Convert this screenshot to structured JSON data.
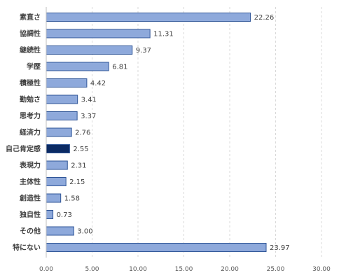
{
  "chart_data": {
    "type": "bar",
    "orientation": "horizontal",
    "categories": [
      "素直さ",
      "協調性",
      "継続性",
      "学歴",
      "積極性",
      "勤勉さ",
      "思考力",
      "経済力",
      "自己肯定感",
      "表現力",
      "主体性",
      "創造性",
      "独自性",
      "その他",
      "特にない"
    ],
    "values": [
      22.26,
      11.31,
      9.37,
      6.81,
      4.42,
      3.41,
      3.37,
      2.76,
      2.55,
      2.31,
      2.15,
      1.58,
      0.73,
      3.0,
      23.97
    ],
    "value_labels": [
      "22.26",
      "11.31",
      "9.37",
      "6.81",
      "4.42",
      "3.41",
      "3.37",
      "2.76",
      "2.55",
      "2.31",
      "2.15",
      "1.58",
      "0.73",
      "3.00",
      "23.97"
    ],
    "xlim": [
      0,
      30
    ],
    "x_ticks": [
      "0.00",
      "5.00",
      "10.00",
      "15.00",
      "20.00",
      "25.00",
      "30.00"
    ],
    "grid": true,
    "highlight_index": 8,
    "colors": {
      "bar_fill": "#8EA9DB",
      "bar_stroke": "#2F5597",
      "highlight_fill": "#0B2A63",
      "grid": "#d9d9d9"
    }
  }
}
